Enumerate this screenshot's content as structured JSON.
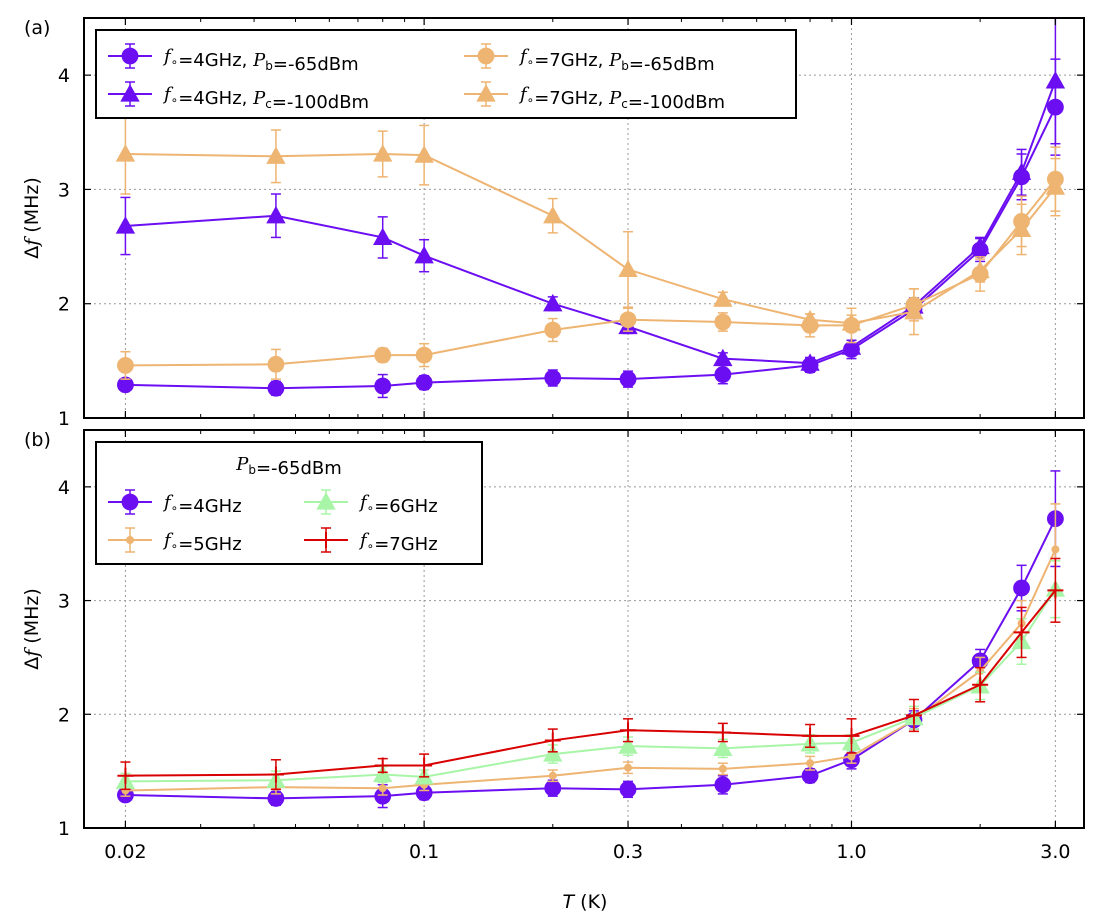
{
  "shared": {
    "xlabel": "T (K)",
    "xscale": "log",
    "xlim": [
      0.016,
      3.5
    ],
    "xticks": [
      0.02,
      0.1,
      0.3,
      1.0,
      3.0
    ],
    "xticklabels": [
      "0.02",
      "0.1",
      "0.3",
      "1.0",
      "3.0"
    ],
    "grid": true
  },
  "chart_data": [
    {
      "type": "line",
      "panel_label": "(a)",
      "ylabel": "Δf (MHz)",
      "ylim": [
        1,
        4.5
      ],
      "yticks": [
        1,
        2,
        3,
        4
      ],
      "yticklabels": [
        "1",
        "2",
        "3",
        "4"
      ],
      "legend_placement": "top-left",
      "legend_title": "",
      "legend_columns": 2,
      "x": [
        0.02,
        0.045,
        0.08,
        0.1,
        0.2,
        0.3,
        0.5,
        0.8,
        1.0,
        1.4,
        2.0,
        2.5,
        3.0
      ],
      "series": [
        {
          "name": "f∘=4GHz, Pb=-65dBm",
          "color": "#6b0ef2",
          "marker": "circle",
          "values": [
            1.29,
            1.26,
            1.28,
            1.31,
            1.35,
            1.34,
            1.38,
            1.46,
            1.6,
            1.95,
            2.47,
            3.11,
            3.72
          ],
          "err": [
            0.05,
            0.06,
            0.1,
            0.06,
            0.07,
            0.07,
            0.08,
            0.06,
            0.08,
            0.08,
            0.1,
            0.2,
            0.42
          ]
        },
        {
          "name": "f∘=4GHz, Pc=-100dBm",
          "color": "#6b0ef2",
          "marker": "triangle",
          "values": [
            2.68,
            2.77,
            2.58,
            2.42,
            2.0,
            1.8,
            1.52,
            1.48,
            1.62,
            1.98,
            2.5,
            3.15,
            3.95
          ],
          "err": [
            0.25,
            0.19,
            0.18,
            0.14,
            0.06,
            0.06,
            0.05,
            0.05,
            0.06,
            0.07,
            0.08,
            0.2,
            0.55
          ]
        },
        {
          "name": "f∘=7GHz, Pb=-65dBm",
          "color": "#eeb472",
          "marker": "circle",
          "values": [
            1.46,
            1.47,
            1.55,
            1.55,
            1.77,
            1.86,
            1.84,
            1.81,
            1.81,
            1.99,
            2.26,
            2.72,
            3.09
          ],
          "err": [
            0.12,
            0.13,
            0.06,
            0.1,
            0.1,
            0.1,
            0.08,
            0.1,
            0.15,
            0.14,
            0.15,
            0.22,
            0.28
          ]
        },
        {
          "name": "f∘=7GHz, Pc=-100dBm",
          "color": "#eeb472",
          "marker": "triangle",
          "values": [
            3.31,
            3.29,
            3.31,
            3.3,
            2.77,
            2.3,
            2.04,
            1.86,
            1.83,
            1.93,
            2.29,
            2.65,
            3.02
          ],
          "err": [
            0.35,
            0.23,
            0.2,
            0.26,
            0.15,
            0.33,
            0.06,
            0.05,
            0.07,
            0.2,
            0.1,
            0.22,
            0.25
          ]
        }
      ]
    },
    {
      "type": "line",
      "panel_label": "(b)",
      "ylabel": "Δf (MHz)",
      "ylim": [
        1,
        4.5
      ],
      "yticks": [
        1,
        2,
        3,
        4
      ],
      "yticklabels": [
        "1",
        "2",
        "3",
        "4"
      ],
      "legend_placement": "top-left",
      "legend_title": "Pb=-65dBm",
      "legend_columns": 2,
      "x": [
        0.02,
        0.045,
        0.08,
        0.1,
        0.2,
        0.3,
        0.5,
        0.8,
        1.0,
        1.4,
        2.0,
        2.5,
        3.0
      ],
      "series": [
        {
          "name": "f∘=4GHz",
          "color": "#6b0ef2",
          "marker": "circle",
          "values": [
            1.29,
            1.26,
            1.28,
            1.31,
            1.35,
            1.34,
            1.38,
            1.46,
            1.6,
            1.95,
            2.47,
            3.11,
            3.72
          ],
          "err": [
            0.05,
            0.06,
            0.1,
            0.06,
            0.07,
            0.07,
            0.08,
            0.06,
            0.08,
            0.08,
            0.1,
            0.2,
            0.42
          ]
        },
        {
          "name": "f∘=5GHz",
          "color": "#eeb472",
          "marker": "dot",
          "values": [
            1.33,
            1.36,
            1.35,
            1.38,
            1.46,
            1.53,
            1.52,
            1.57,
            1.63,
            1.95,
            2.38,
            2.8,
            3.45
          ],
          "err": [
            0.05,
            0.06,
            0.06,
            0.05,
            0.05,
            0.05,
            0.05,
            0.06,
            0.06,
            0.1,
            0.12,
            0.2,
            0.4
          ]
        },
        {
          "name": "f∘=6GHz",
          "color": "#a8f5a8",
          "marker": "triangle",
          "values": [
            1.41,
            1.42,
            1.47,
            1.45,
            1.65,
            1.72,
            1.7,
            1.74,
            1.75,
            1.97,
            2.25,
            2.64,
            3.1
          ],
          "err": [
            0.07,
            0.08,
            0.07,
            0.06,
            0.08,
            0.08,
            0.08,
            0.08,
            0.07,
            0.1,
            0.12,
            0.2,
            0.25
          ]
        },
        {
          "name": "f∘=7GHz",
          "color": "#d80000",
          "marker": "plus",
          "values": [
            1.46,
            1.47,
            1.55,
            1.55,
            1.77,
            1.86,
            1.84,
            1.81,
            1.81,
            1.99,
            2.26,
            2.72,
            3.09
          ],
          "err": [
            0.12,
            0.13,
            0.06,
            0.1,
            0.1,
            0.1,
            0.08,
            0.1,
            0.15,
            0.14,
            0.15,
            0.22,
            0.28
          ]
        }
      ]
    }
  ]
}
